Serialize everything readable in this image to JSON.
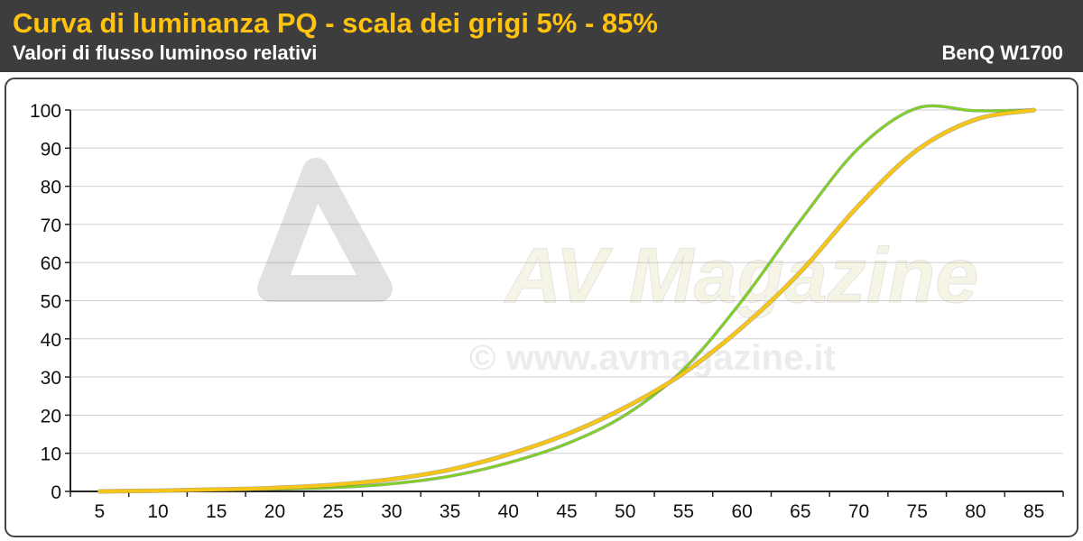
{
  "header": {
    "title": "Curva di luminanza PQ - scala dei grigi 5% - 85%",
    "subtitle": "Valori di flusso luminoso relativi",
    "device": "BenQ W1700"
  },
  "watermark": {
    "logo_text": "AV Magazine",
    "url_text": "© www.avmagazine.it"
  },
  "colors": {
    "header_bg": "#3d3d3d",
    "title": "#ffc20e",
    "series_measured": "#7ed321",
    "series_reference": "#f5c518"
  },
  "chart_data": {
    "type": "line",
    "x": [
      5,
      10,
      15,
      20,
      25,
      30,
      35,
      40,
      45,
      50,
      55,
      60,
      65,
      70,
      75,
      80,
      85
    ],
    "xlim": [
      5,
      85
    ],
    "ylim": [
      0,
      100
    ],
    "yticks": [
      0,
      10,
      20,
      30,
      40,
      50,
      60,
      70,
      80,
      90,
      100
    ],
    "grid": true,
    "legend": "none",
    "series": [
      {
        "color": "#7ed321",
        "values": [
          0,
          0.2,
          0.4,
          0.6,
          1.0,
          2.0,
          4.0,
          7.5,
          12.5,
          20.0,
          32.0,
          50.0,
          71.0,
          90.0,
          100.5,
          99.8,
          100
        ]
      },
      {
        "color": "#f5c518",
        "values": [
          0,
          0.2,
          0.5,
          0.9,
          1.7,
          3.2,
          5.7,
          9.7,
          15.0,
          22.0,
          31.0,
          43.0,
          57.5,
          75.0,
          89.5,
          97.5,
          100
        ]
      }
    ]
  }
}
